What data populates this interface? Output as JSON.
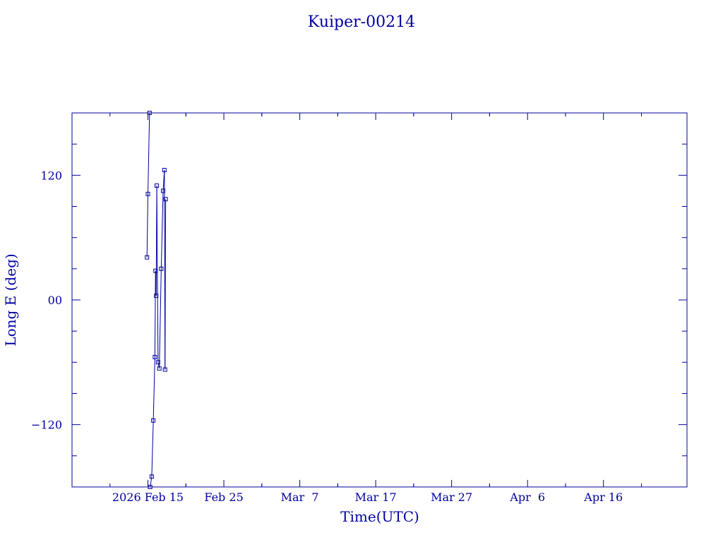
{
  "chart_data": {
    "type": "scatter",
    "title": "Kuiper-00214",
    "xlabel": "Time(UTC)",
    "ylabel": "Long E (deg)",
    "x_range": [
      "2026-02-05",
      "2026-04-27"
    ],
    "ylim": [
      -180,
      180
    ],
    "x_ticks": [
      {
        "date": "2026-02-15",
        "label": "2026 Feb 15"
      },
      {
        "date": "2026-02-25",
        "label": "Feb 25"
      },
      {
        "date": "2026-03-07",
        "label": "Mar  7"
      },
      {
        "date": "2026-03-17",
        "label": "Mar 17"
      },
      {
        "date": "2026-03-27",
        "label": "Mar 27"
      },
      {
        "date": "2026-04-06",
        "label": "Apr  6"
      },
      {
        "date": "2026-04-16",
        "label": "Apr 16"
      }
    ],
    "y_ticks": [
      {
        "value": 120,
        "label": "120"
      },
      {
        "value": 0,
        "label": "00"
      },
      {
        "value": -120,
        "label": "−120"
      }
    ],
    "grid": false,
    "color": "#0000a0",
    "marker": "square",
    "series": [
      {
        "points": [
          [
            "2026-02-14T21:00",
            41
          ],
          [
            "2026-02-15T00:00",
            102
          ],
          [
            "2026-02-15T05:00",
            180
          ],
          [
            "2026-02-15T07:00",
            -180
          ],
          [
            "2026-02-15T12:00",
            -170
          ],
          [
            "2026-02-15T17:00",
            -116
          ],
          [
            "2026-02-15T22:00",
            -55
          ],
          [
            "2026-02-16T00:00",
            28
          ],
          [
            "2026-02-16T02:00",
            4
          ],
          [
            "2026-02-16T04:00",
            110
          ],
          [
            "2026-02-16T08:00",
            -60
          ],
          [
            "2026-02-16T12:00",
            -66
          ],
          [
            "2026-02-16T18:00",
            30
          ],
          [
            "2026-02-17T00:00",
            105
          ],
          [
            "2026-02-17T04:00",
            125
          ],
          [
            "2026-02-17T06:00",
            -67
          ],
          [
            "2026-02-17T08:00",
            97
          ]
        ]
      }
    ]
  }
}
